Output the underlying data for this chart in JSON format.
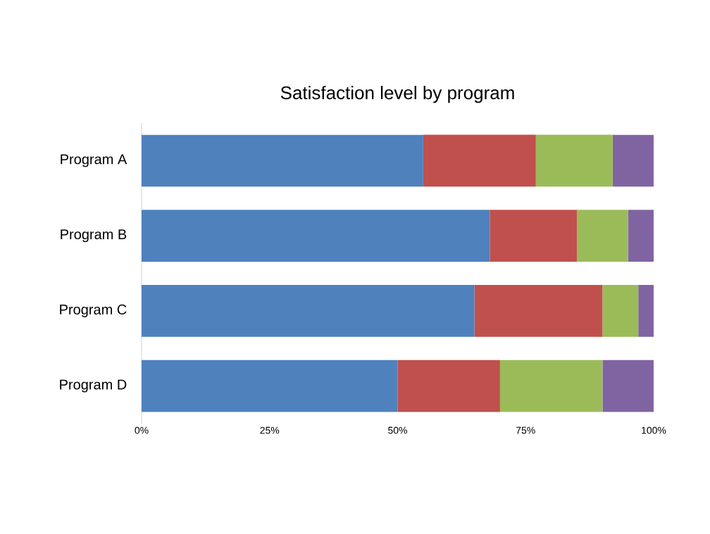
{
  "chart_data": {
    "type": "bar",
    "orientation": "horizontal",
    "stacked": true,
    "title": "Satisfaction level by program",
    "categories": [
      "Program A",
      "Program B",
      "Program C",
      "Program D"
    ],
    "series": [
      {
        "color": "#4f81bd",
        "values": [
          55,
          68,
          65,
          50
        ]
      },
      {
        "color": "#c0504d",
        "values": [
          22,
          17,
          25,
          20
        ]
      },
      {
        "color": "#9bbb59",
        "values": [
          15,
          10,
          7,
          20
        ]
      },
      {
        "color": "#8064a2",
        "values": [
          8,
          5,
          3,
          10
        ]
      }
    ],
    "xlim": [
      0,
      100
    ],
    "xticks": [
      {
        "value": 0,
        "label": "0%"
      },
      {
        "value": 25,
        "label": "25%"
      },
      {
        "value": 50,
        "label": "50%"
      },
      {
        "value": 75,
        "label": "75%"
      },
      {
        "value": 100,
        "label": "100%"
      }
    ],
    "grid": false
  }
}
